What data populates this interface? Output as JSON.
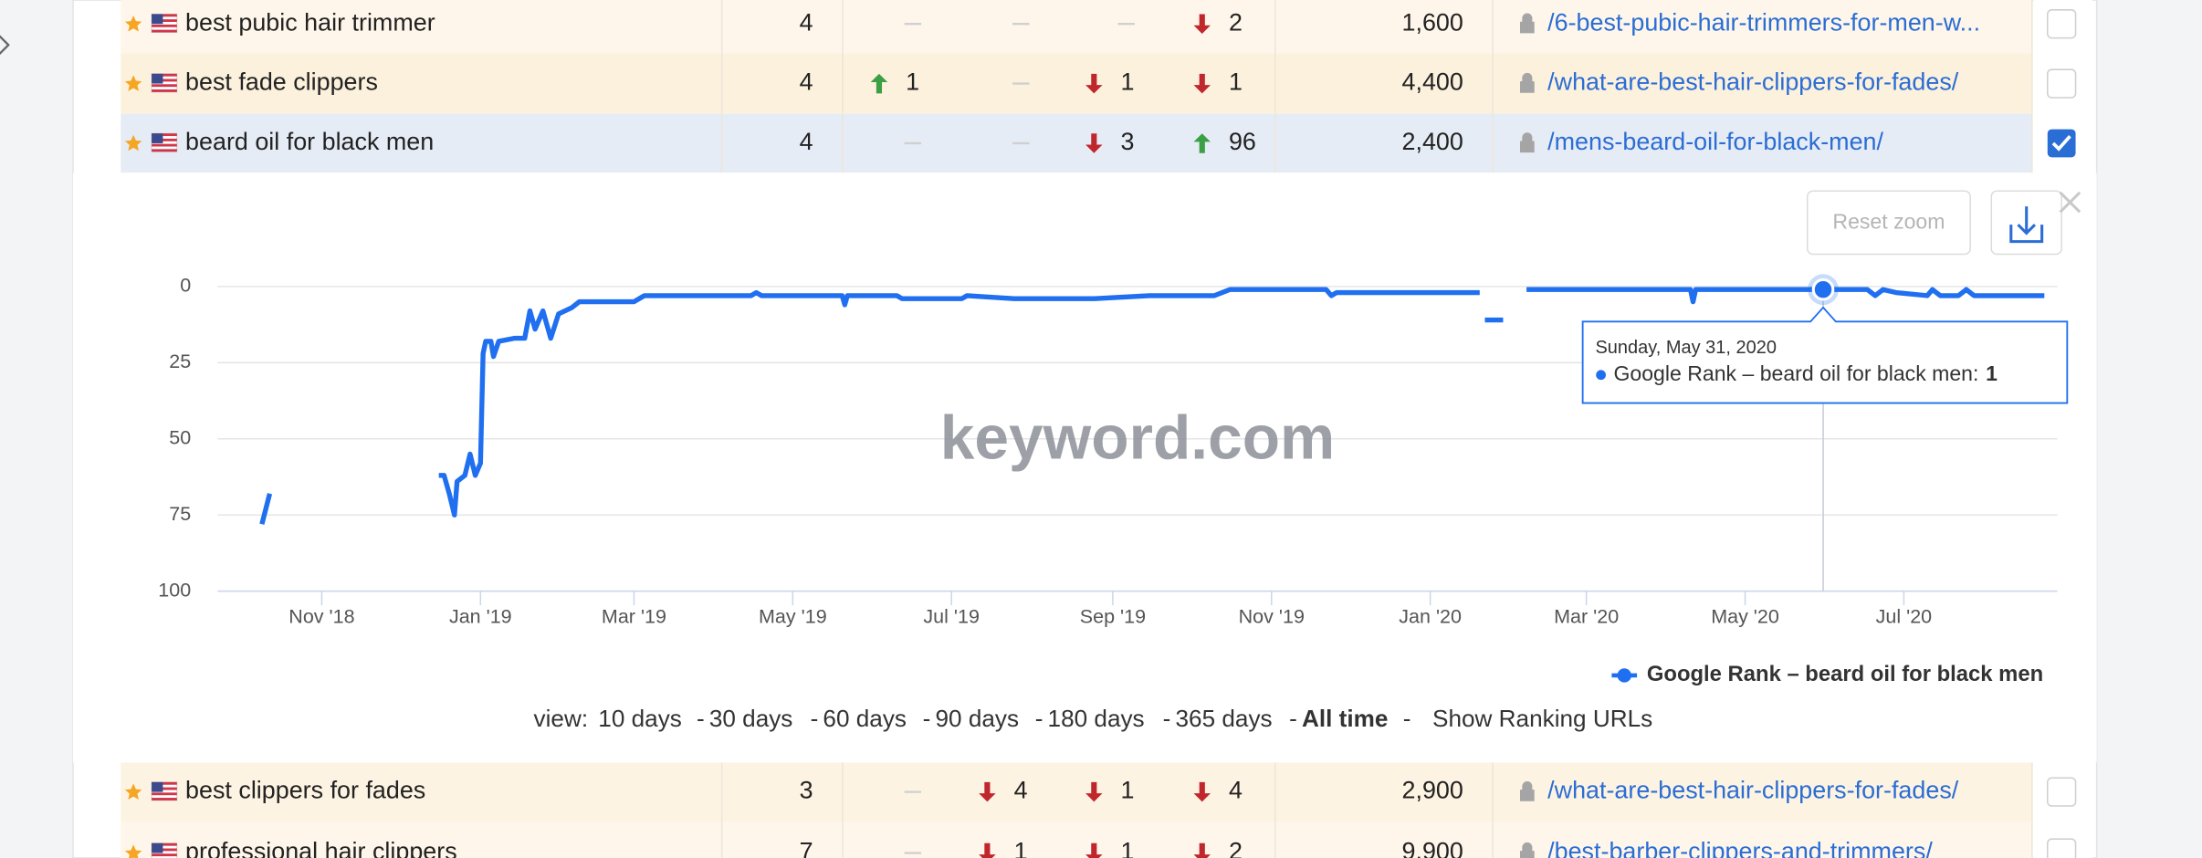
{
  "table": {
    "rows": [
      {
        "keyword": "best pubic hair trimmer",
        "position": 4,
        "changes": [
          null,
          null,
          null,
          {
            "dir": "down",
            "value": 2
          }
        ],
        "volume": "1,600",
        "url": "/6-best-pubic-hair-trimmers-for-men-w...",
        "checked": false
      },
      {
        "keyword": "best fade clippers",
        "position": 4,
        "changes": [
          {
            "dir": "up",
            "value": 1
          },
          null,
          {
            "dir": "down",
            "value": 1
          },
          {
            "dir": "down",
            "value": 1
          }
        ],
        "volume": "4,400",
        "url": "/what-are-best-hair-clippers-for-fades/",
        "checked": false
      },
      {
        "keyword": "beard oil for black men",
        "position": 4,
        "changes": [
          null,
          null,
          {
            "dir": "down",
            "value": 3
          },
          {
            "dir": "up",
            "value": 96
          }
        ],
        "volume": "2,400",
        "url": "/mens-beard-oil-for-black-men/",
        "checked": true
      },
      {
        "keyword": "best clippers for fades",
        "position": 3,
        "changes": [
          null,
          {
            "dir": "down",
            "value": 4
          },
          {
            "dir": "down",
            "value": 1
          },
          {
            "dir": "down",
            "value": 4
          }
        ],
        "volume": "2,900",
        "url": "/what-are-best-hair-clippers-for-fades/",
        "checked": false
      },
      {
        "keyword": "professional hair clippers",
        "position": 7,
        "changes": [
          null,
          {
            "dir": "down",
            "value": 1
          },
          {
            "dir": "down",
            "value": 1
          },
          {
            "dir": "down",
            "value": 2
          }
        ],
        "volume": "9,900",
        "url": "/best-barber-clippers-and-trimmers/",
        "checked": false
      }
    ]
  },
  "chart_panel": {
    "reset_zoom": "Reset zoom",
    "watermark": "keyword.com",
    "view": {
      "label": "view:",
      "separator": "-",
      "options": [
        "10 days",
        "30 days",
        "60 days",
        "90 days",
        "180 days",
        "365 days",
        "All time"
      ],
      "active": 6,
      "link": "Show Ranking URLs"
    }
  },
  "chart_data": {
    "type": "line",
    "x": [
      "2018-10-09",
      "2018-10-12",
      "2018-10-20",
      "2018-12-16",
      "2018-12-18",
      "2018-12-20",
      "2018-12-22",
      "2018-12-23",
      "2018-12-26",
      "2018-12-28",
      "2018-12-30",
      "2019-01-01",
      "2019-01-02",
      "2019-01-03",
      "2019-01-05",
      "2019-01-06",
      "2019-01-08",
      "2019-01-14",
      "2019-01-18",
      "2019-01-20",
      "2019-01-22",
      "2019-01-25",
      "2019-01-28",
      "2019-01-31",
      "2019-02-05",
      "2019-02-08",
      "2019-03-01",
      "2019-03-05",
      "2019-04-15",
      "2019-04-17",
      "2019-04-19",
      "2019-05-20",
      "2019-05-21",
      "2019-05-22",
      "2019-06-10",
      "2019-06-12",
      "2019-07-05",
      "2019-07-07",
      "2019-07-25",
      "2019-08-25",
      "2019-09-15",
      "2019-10-10",
      "2019-10-16",
      "2019-11-22",
      "2019-11-24",
      "2019-11-26",
      "2020-01-20",
      "2020-01-21",
      "2020-01-22",
      "2020-01-29",
      "2020-02-01",
      "2020-02-07",
      "2020-03-20",
      "2020-04-10",
      "2020-04-11",
      "2020-04-12",
      "2020-05-31",
      "2020-06-17",
      "2020-06-20",
      "2020-06-23",
      "2020-06-28",
      "2020-07-10",
      "2020-07-12",
      "2020-07-15",
      "2020-07-22",
      "2020-07-25",
      "2020-07-28",
      "2020-08-24"
    ],
    "series": [
      {
        "name": "Google Rank – beard oil for black men",
        "color": "#1f6ff0",
        "values": [
          78,
          68,
          null,
          62,
          62,
          68,
          75,
          64,
          62,
          55,
          62,
          58,
          22,
          18,
          18,
          23,
          18,
          17,
          17,
          8,
          14,
          8,
          17,
          9,
          7,
          5,
          5,
          3,
          3,
          2,
          3,
          3,
          6,
          3,
          3,
          4,
          4,
          3,
          4,
          4,
          3,
          3,
          1,
          1,
          3,
          2,
          2,
          null,
          11,
          11,
          null,
          1,
          1,
          1,
          5,
          1,
          1,
          1,
          3,
          1,
          2,
          3,
          1,
          3,
          3,
          1,
          3,
          3
        ]
      }
    ],
    "xlim": [
      "2018-09-22",
      "2020-08-29"
    ],
    "xticks": [
      {
        "value": "2018-11",
        "label": "Nov '18"
      },
      {
        "value": "2019-01",
        "label": "Jan '19"
      },
      {
        "value": "2019-03",
        "label": "Mar '19"
      },
      {
        "value": "2019-05",
        "label": "May '19"
      },
      {
        "value": "2019-07",
        "label": "Jul '19"
      },
      {
        "value": "2019-09",
        "label": "Sep '19"
      },
      {
        "value": "2019-11",
        "label": "Nov '19"
      },
      {
        "value": "2020-01",
        "label": "Jan '20"
      },
      {
        "value": "2020-03",
        "label": "Mar '20"
      },
      {
        "value": "2020-05",
        "label": "May '20"
      },
      {
        "value": "2020-07",
        "label": "Jul '20"
      }
    ],
    "ylim": [
      0,
      100
    ],
    "y_reversed": true,
    "yticks": [
      0,
      25,
      50,
      75,
      100
    ],
    "grid": true,
    "tooltip": {
      "x": "2020-05-31",
      "date": "Sunday, May 31, 2020",
      "label": "Google Rank – beard oil for black men:",
      "value": 1
    },
    "legend": "bottom-right"
  }
}
